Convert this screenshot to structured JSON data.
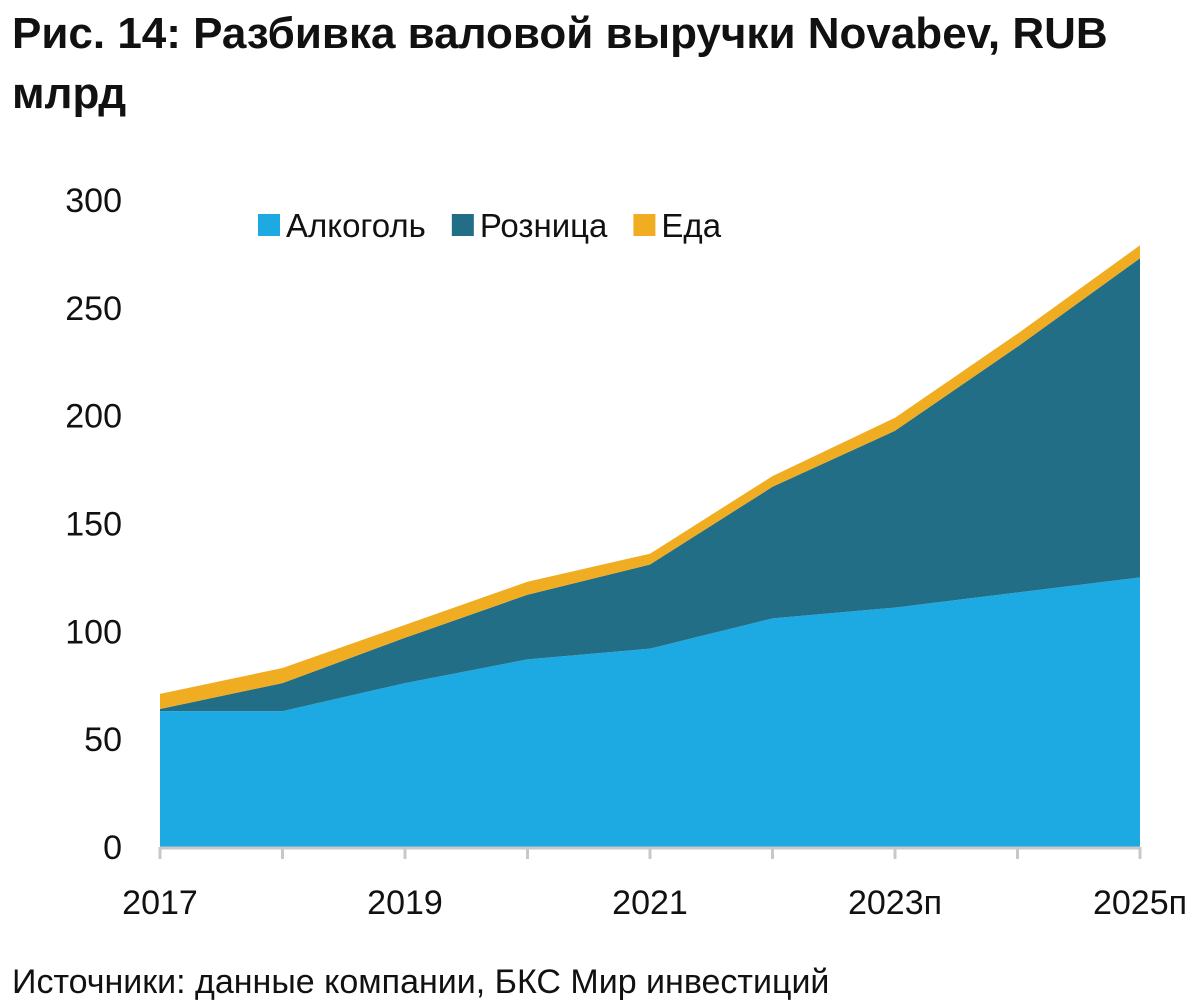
{
  "header": {
    "title": "Рис. 14: Разбивка валовой выручки Novabev, RUB млрд"
  },
  "footer": {
    "source": "Источники: данные компании, БКС Мир инвестиций"
  },
  "colors": {
    "alcohol": "#1daae3",
    "retail": "#226e87",
    "food": "#f0ad22",
    "axis": "#c8c8c8"
  },
  "chart_data": {
    "type": "area",
    "stacked": true,
    "title": "Рис. 14: Разбивка валовой выручки Novabev, RUB млрд",
    "xlabel": "",
    "ylabel": "",
    "x": [
      "2017",
      "2018",
      "2019",
      "2020",
      "2021",
      "2022",
      "2023п",
      "2024п",
      "2025п"
    ],
    "x_tick_labels": [
      "2017",
      "2019",
      "2021",
      "2023п",
      "2025п"
    ],
    "y_ticks": [
      0,
      50,
      100,
      150,
      200,
      250,
      300
    ],
    "ylim": [
      0,
      300
    ],
    "grid": false,
    "legend_position": "top-left",
    "series": [
      {
        "name": "Алкоголь",
        "color": "#1daae3",
        "values": [
          63,
          63,
          76,
          87,
          92,
          106,
          111,
          118,
          125
        ]
      },
      {
        "name": "Розница",
        "color": "#226e87",
        "values": [
          1,
          13,
          21,
          30,
          39,
          61,
          82,
          114,
          148
        ]
      },
      {
        "name": "Еда",
        "color": "#f0ad22",
        "values": [
          7,
          7,
          6,
          6,
          5,
          5,
          6,
          6,
          6
        ]
      }
    ]
  }
}
